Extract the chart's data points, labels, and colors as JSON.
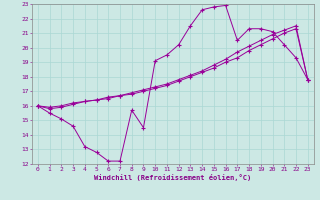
{
  "xlabel": "Windchill (Refroidissement éolien,°C)",
  "bg_color": "#cce8e4",
  "line_color": "#990099",
  "grid_color": "#aad8d4",
  "xlim": [
    -0.5,
    23.5
  ],
  "ylim": [
    12,
    23
  ],
  "xticks": [
    0,
    1,
    2,
    3,
    4,
    5,
    6,
    7,
    8,
    9,
    10,
    11,
    12,
    13,
    14,
    15,
    16,
    17,
    18,
    19,
    20,
    21,
    22,
    23
  ],
  "yticks": [
    12,
    13,
    14,
    15,
    16,
    17,
    18,
    19,
    20,
    21,
    22,
    23
  ],
  "series1_x": [
    0,
    1,
    2,
    3,
    4,
    5,
    6,
    7,
    8,
    9,
    10,
    11,
    12,
    13,
    14,
    15,
    16,
    17,
    18,
    19,
    20,
    21,
    22,
    23
  ],
  "series1_y": [
    16.0,
    15.5,
    15.1,
    14.6,
    13.2,
    12.8,
    12.2,
    12.2,
    15.7,
    14.5,
    19.1,
    19.5,
    20.2,
    21.5,
    22.6,
    22.8,
    22.9,
    20.5,
    21.3,
    21.3,
    21.1,
    20.2,
    19.3,
    17.8
  ],
  "series2_x": [
    0,
    1,
    2,
    3,
    4,
    5,
    6,
    7,
    8,
    9,
    10,
    11,
    12,
    13,
    14,
    15,
    16,
    17,
    18,
    19,
    20,
    21,
    22,
    23
  ],
  "series2_y": [
    16.0,
    15.8,
    15.9,
    16.1,
    16.3,
    16.4,
    16.5,
    16.7,
    16.8,
    17.0,
    17.2,
    17.4,
    17.7,
    18.0,
    18.3,
    18.6,
    19.0,
    19.3,
    19.8,
    20.2,
    20.6,
    21.0,
    21.3,
    17.8
  ],
  "series3_x": [
    0,
    1,
    2,
    3,
    4,
    5,
    6,
    7,
    8,
    9,
    10,
    11,
    12,
    13,
    14,
    15,
    16,
    17,
    18,
    19,
    20,
    21,
    22,
    23
  ],
  "series3_y": [
    16.0,
    15.9,
    16.0,
    16.2,
    16.3,
    16.4,
    16.6,
    16.7,
    16.9,
    17.1,
    17.3,
    17.5,
    17.8,
    18.1,
    18.4,
    18.8,
    19.2,
    19.7,
    20.1,
    20.5,
    20.9,
    21.2,
    21.5,
    17.8
  ]
}
